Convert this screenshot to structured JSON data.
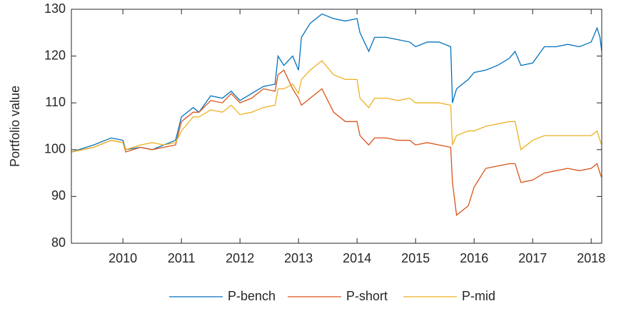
{
  "chart_data": {
    "type": "line",
    "y_label": "Portfolio value",
    "x": [
      2009.12,
      2009.5,
      2009.8,
      2010.0,
      2010.05,
      2010.3,
      2010.5,
      2010.7,
      2010.9,
      2011.0,
      2011.2,
      2011.3,
      2011.5,
      2011.7,
      2011.85,
      2012.0,
      2012.2,
      2012.4,
      2012.6,
      2012.65,
      2012.75,
      2012.9,
      2013.0,
      2013.05,
      2013.2,
      2013.4,
      2013.6,
      2013.8,
      2014.0,
      2014.05,
      2014.2,
      2014.3,
      2014.5,
      2014.7,
      2014.9,
      2015.0,
      2015.2,
      2015.4,
      2015.6,
      2015.63,
      2015.7,
      2015.9,
      2016.0,
      2016.2,
      2016.4,
      2016.6,
      2016.7,
      2016.8,
      2017.0,
      2017.2,
      2017.4,
      2017.6,
      2017.8,
      2018.0,
      2018.1,
      2018.15,
      2018.18
    ],
    "series": [
      {
        "name": "P-bench",
        "color": "#0072bd",
        "values": [
          99.5,
          101,
          102.5,
          102,
          100,
          100.5,
          100,
          101,
          102,
          107,
          109,
          108,
          111.5,
          111,
          112.5,
          110.5,
          112,
          113.5,
          114,
          120,
          118,
          120,
          117,
          124,
          127,
          129,
          128,
          127.5,
          128,
          125,
          121,
          124,
          124,
          123.5,
          123,
          122,
          123,
          123,
          122,
          110,
          113,
          115,
          116.5,
          117,
          118,
          119.5,
          121,
          118,
          118.5,
          122,
          122,
          122.5,
          122,
          123,
          126,
          124,
          121
        ]
      },
      {
        "name": "P-short",
        "color": "#d95319",
        "values": [
          99.5,
          100.5,
          102,
          101.5,
          99.5,
          100.5,
          100,
          100.5,
          101,
          106,
          108,
          108,
          110.5,
          110,
          112,
          110,
          111,
          113,
          112.5,
          116,
          117,
          113,
          111,
          109.5,
          111,
          113,
          108,
          106,
          106,
          103,
          101,
          102.5,
          102.5,
          102,
          102,
          101,
          101.5,
          101,
          100.5,
          93,
          86,
          88,
          92,
          96,
          96.5,
          97,
          97,
          93,
          93.5,
          95,
          95.5,
          96,
          95.5,
          96,
          97,
          95,
          94
        ]
      },
      {
        "name": "P-mid",
        "color": "#edb120",
        "values": [
          99.5,
          100.5,
          102,
          101.5,
          100,
          101,
          101.5,
          101,
          101.5,
          104,
          107,
          107,
          108.5,
          108,
          109.5,
          107.5,
          108,
          109,
          109.5,
          113,
          113,
          114,
          112,
          115,
          117,
          119,
          116,
          115,
          115,
          111,
          109,
          111,
          111,
          110.5,
          111,
          110,
          110,
          110,
          109.5,
          101,
          103,
          104,
          104,
          105,
          105.5,
          106,
          106,
          100,
          102,
          103,
          103,
          103,
          103,
          103,
          104,
          102,
          101
        ]
      }
    ],
    "xlim": [
      2009.12,
      2018.18
    ],
    "xticks": [
      2010,
      2011,
      2012,
      2013,
      2014,
      2015,
      2016,
      2017,
      2018
    ],
    "ylim": [
      80,
      130
    ],
    "yticks": [
      80,
      90,
      100,
      110,
      120,
      130
    ],
    "legend": "bottom"
  }
}
